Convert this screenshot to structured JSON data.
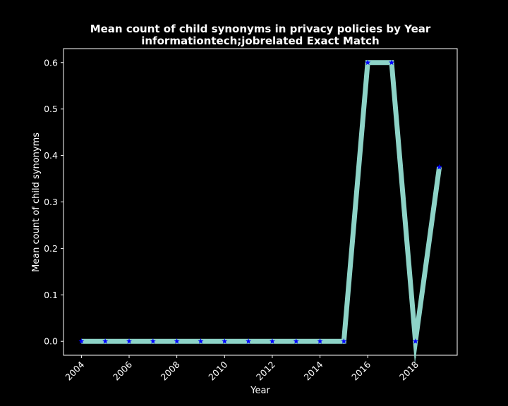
{
  "chart_data": {
    "type": "line",
    "title": "Mean count of child synonyms in privacy policies by Year",
    "subtitle": "informationtech;jobrelated Exact Match",
    "xlabel": "Year",
    "ylabel": "Mean count of child synonyms",
    "x": [
      2004,
      2005,
      2006,
      2007,
      2008,
      2009,
      2010,
      2011,
      2012,
      2013,
      2014,
      2015,
      2016,
      2017,
      2018,
      2019
    ],
    "series": [
      {
        "values": [
          0,
          0,
          0,
          0,
          0,
          0,
          0,
          0,
          0,
          0,
          0,
          0,
          0.6,
          0.6,
          0,
          0.375
        ]
      }
    ],
    "xlim": [
      2003.25,
      2019.75
    ],
    "ylim": [
      -0.03,
      0.63
    ],
    "xticks": [
      "2004",
      "2006",
      "2008",
      "2010",
      "2012",
      "2014",
      "2016",
      "2018"
    ],
    "yticks": [
      "0.0",
      "0.1",
      "0.2",
      "0.3",
      "0.4",
      "0.5",
      "0.6"
    ],
    "grid": false,
    "colors": {
      "background": "#000000",
      "line": "#8dd3c7",
      "marker": "#0000ff",
      "axes": "#ffffff"
    },
    "marker": "star-icon"
  }
}
